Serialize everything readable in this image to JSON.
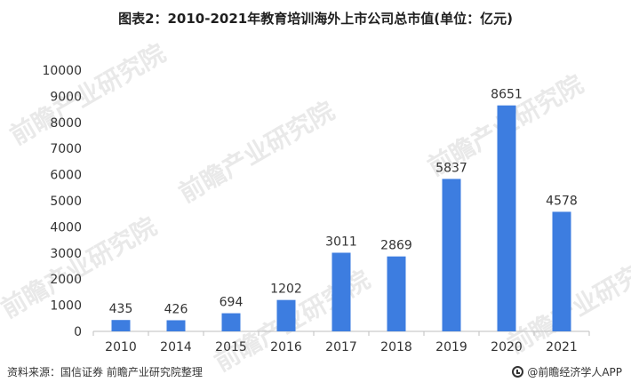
{
  "title": "图表2：2010-2021年教育培训海外上市公司总市值(单位：亿元)",
  "source": "资料来源：国信证券 前瞻产业研究院整理",
  "brand": "@前瞻经济学人APP",
  "watermark": "前瞻产业研究院",
  "colors": {
    "bar": "#3d7de0",
    "axis": "#bfbfbf",
    "text": "#333333"
  },
  "chart_data": {
    "type": "bar",
    "categories": [
      "2010",
      "2014",
      "2015",
      "2016",
      "2017",
      "2018",
      "2019",
      "2020",
      "2021"
    ],
    "values": [
      435,
      426,
      694,
      1202,
      3011,
      2869,
      5837,
      8651,
      4578
    ],
    "ylim": [
      0,
      10000
    ],
    "yticks": [
      0,
      1000,
      2000,
      3000,
      4000,
      5000,
      6000,
      7000,
      8000,
      9000,
      10000
    ],
    "grid": false
  }
}
